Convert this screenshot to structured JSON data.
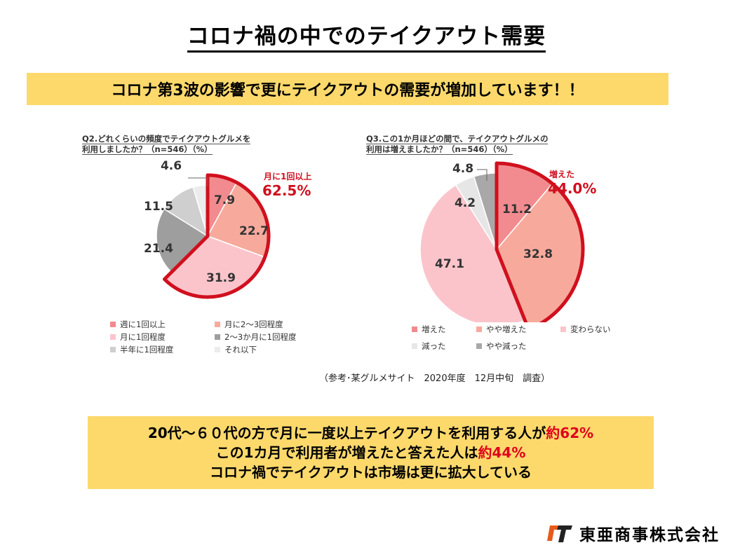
{
  "title": "コロナ禍の中でのテイクアウト需要",
  "banner": "コロナ第3波の影響で更にテイクアウトの需要が増加しています！！",
  "source": "（参考･某グルメサイト　2020年度　12月中旬　調査）",
  "summary": {
    "line1_text": "20代～６０代の方で月に一度以上テイクアウトを利用する人が",
    "line1_highlight": "約62%",
    "line2_text": "この1カ月で利用者が増えたと答えた人は",
    "line2_highlight": "約44%",
    "line3_text": "コロナ禍でテイクアウトは市場は更に拡大している"
  },
  "company": "東亜商事株式会社",
  "colors": {
    "accent_red": "#d0101e",
    "banner_yellow": "#fdd96c"
  },
  "chart_data": [
    {
      "type": "pie",
      "title_line1": "Q2.どれくらいの頻度でテイクアウトグルメを",
      "title_line2": "利用しましたか？（n=546）（%）",
      "callout_label": "月に1回以上",
      "callout_value": "62.5%",
      "highlight_count": 3,
      "slices": [
        {
          "label": "週に1回以上",
          "value": 7.9,
          "display": "7.9",
          "color": "#f28b8f"
        },
        {
          "label": "月に2～3回程度",
          "value": 22.7,
          "display": "22.7",
          "color": "#f7aa9c"
        },
        {
          "label": "月に1回程度",
          "value": 31.9,
          "display": "31.9",
          "color": "#fbc4cb"
        },
        {
          "label": "2～3か月に1回程度",
          "value": 21.4,
          "display": "21.4",
          "color": "#9e9e9e"
        },
        {
          "label": "半年に1回程度",
          "value": 11.5,
          "display": "11.5",
          "color": "#cfcfcf"
        },
        {
          "label": "それ以下",
          "value": 4.6,
          "display": "4.6",
          "color": "#ececec"
        }
      ]
    },
    {
      "type": "pie",
      "title_line1": "Q3.この1か月ほどの間で、テイクアウトグルメの",
      "title_line2": "利用は増えましたか？（n=546）（%）",
      "callout_label": "増えた",
      "callout_value": "44.0%",
      "highlight_count": 2,
      "slices": [
        {
          "label": "増えた",
          "value": 11.2,
          "display": "11.2",
          "color": "#f28b8f"
        },
        {
          "label": "やや増えた",
          "value": 32.8,
          "display": "32.8",
          "color": "#f7aa9c"
        },
        {
          "label": "変わらない",
          "value": 47.1,
          "display": "47.1",
          "color": "#fbc4cb"
        },
        {
          "label": "減った",
          "value": 4.2,
          "display": "4.2",
          "color": "#e6e6e6"
        },
        {
          "label": "やや減った",
          "value": 4.8,
          "display": "4.8",
          "color": "#a8a8a8"
        }
      ]
    }
  ]
}
